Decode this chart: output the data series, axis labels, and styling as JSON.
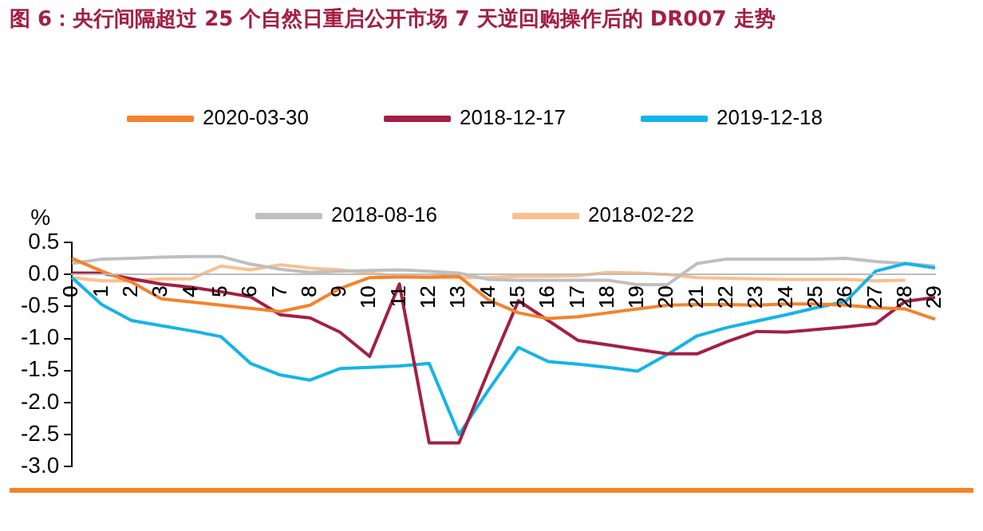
{
  "chart_data": {
    "type": "line",
    "title": "图 6：央行间隔超过 25 个自然日重启公开市场 7 天逆回购操作后的 DR007 走势",
    "ylabel": "%",
    "categories": [
      "0",
      "1",
      "2",
      "3",
      "4",
      "5",
      "6",
      "7",
      "8",
      "9",
      "10",
      "11",
      "12",
      "13",
      "14",
      "15",
      "16",
      "17",
      "18",
      "19",
      "20",
      "21",
      "22",
      "23",
      "24",
      "25",
      "26",
      "27",
      "28",
      "29"
    ],
    "series": [
      {
        "name": "2020-03-30",
        "color": "#f5822a",
        "values": [
          0.25,
          0.05,
          -0.12,
          -0.38,
          -0.43,
          -0.48,
          -0.53,
          -0.58,
          -0.48,
          -0.22,
          -0.05,
          -0.04,
          -0.04,
          -0.03,
          -0.4,
          -0.6,
          -0.69,
          -0.66,
          -0.6,
          -0.54,
          -0.48,
          -0.47,
          -0.47,
          -0.48,
          -0.46,
          -0.46,
          -0.48,
          -0.52,
          -0.54,
          -0.7
        ]
      },
      {
        "name": "2018-12-17",
        "color": "#a31f44",
        "values": [
          0.02,
          0.02,
          -0.07,
          -0.15,
          -0.2,
          -0.27,
          -0.35,
          -0.63,
          -0.68,
          -0.9,
          -1.28,
          -0.15,
          -2.63,
          -2.63,
          -1.5,
          -0.41,
          -0.72,
          -1.03,
          -1.1,
          -1.17,
          -1.24,
          -1.24,
          -1.05,
          -0.89,
          -0.9,
          -0.86,
          -0.82,
          -0.77,
          -0.42,
          -0.36
        ]
      },
      {
        "name": "2019-12-18",
        "color": "#14b4e8",
        "values": [
          -0.05,
          -0.47,
          -0.72,
          -0.8,
          -0.88,
          -0.97,
          -1.39,
          -1.57,
          -1.65,
          -1.47,
          -1.45,
          -1.43,
          -1.39,
          -2.5,
          -1.8,
          -1.14,
          -1.36,
          -1.4,
          -1.45,
          -1.51,
          -1.25,
          -0.96,
          -0.83,
          -0.73,
          -0.63,
          -0.52,
          -0.42,
          0.05,
          0.17,
          0.1
        ]
      },
      {
        "name": "2018-08-16",
        "color": "#bfbfbf",
        "values": [
          0.17,
          0.24,
          0.25,
          0.27,
          0.28,
          0.28,
          0.16,
          0.08,
          0.03,
          0.05,
          0.06,
          0.07,
          0.05,
          0.02,
          -0.08,
          -0.09,
          -0.09,
          -0.09,
          -0.09,
          -0.16,
          -0.16,
          0.17,
          0.24,
          0.24,
          0.24,
          0.24,
          0.25,
          0.2,
          0.17,
          0.13
        ]
      },
      {
        "name": "2018-02-22",
        "color": "#fbbf8d",
        "values": [
          -0.05,
          -0.1,
          -0.1,
          -0.07,
          -0.07,
          0.13,
          0.07,
          0.15,
          0.1,
          0.07,
          0.02,
          -0.03,
          -0.05,
          -0.05,
          -0.05,
          -0.03,
          -0.03,
          -0.02,
          0.03,
          0.02,
          0.0,
          -0.05,
          -0.06,
          -0.07,
          -0.08,
          -0.08,
          -0.08,
          -0.1,
          -0.09,
          null
        ]
      }
    ],
    "ylim": [
      -3.0,
      0.5
    ],
    "yticks": [
      {
        "value": -3,
        "label": "-3.0"
      },
      {
        "value": -2.5,
        "label": "-2.5"
      },
      {
        "value": -2,
        "label": "-2.0"
      },
      {
        "value": -1.5,
        "label": "-1.5"
      },
      {
        "value": -1,
        "label": "-1.0"
      },
      {
        "value": -0.5,
        "label": "-0.5"
      },
      {
        "value": 0,
        "label": "0.0"
      },
      {
        "value": 0.5,
        "label": "0.5"
      }
    ],
    "grid": false,
    "legend": "top",
    "marker": "none",
    "line_style": "solid"
  }
}
